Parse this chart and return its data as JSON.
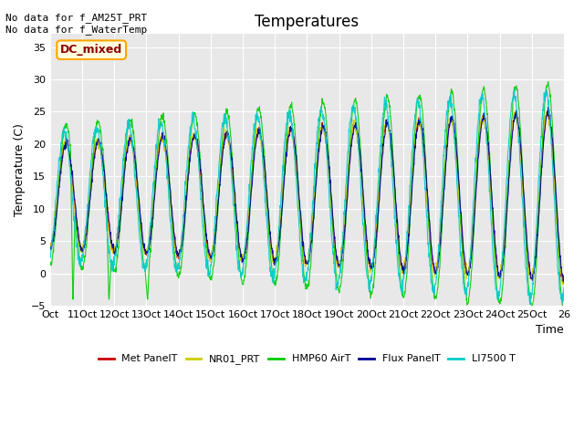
{
  "title": "Temperatures",
  "ylabel": "Temperature (C)",
  "xlabel": "Time",
  "ylim": [
    -5,
    37
  ],
  "yticks": [
    -5,
    0,
    5,
    10,
    15,
    20,
    25,
    30,
    35
  ],
  "annotation_text": "No data for f_AM25T_PRT\nNo data for f_WaterTemp",
  "dc_mixed_label": "DC_mixed",
  "legend_entries": [
    {
      "label": "Met PanelT",
      "color": "#cc0000"
    },
    {
      "label": "NR01_PRT",
      "color": "#cccc00"
    },
    {
      "label": "HMP60 AirT",
      "color": "#00cc00"
    },
    {
      "label": "Flux PanelT",
      "color": "#000099"
    },
    {
      "label": "LI7500 T",
      "color": "#00cccc"
    }
  ],
  "x_start": 0,
  "x_end": 16,
  "xtick_positions": [
    0,
    1,
    2,
    3,
    4,
    5,
    6,
    7,
    8,
    9,
    10,
    11,
    12,
    13,
    14,
    15,
    16
  ],
  "xtick_labels": [
    "Oct",
    "11Oct",
    "12Oct",
    "13Oct",
    "14Oct",
    "15Oct",
    "16Oct",
    "17Oct",
    "18Oct",
    "19Oct",
    "20Oct",
    "21Oct",
    "22Oct",
    "23Oct",
    "24Oct",
    "25Oct",
    "26"
  ],
  "background_color": "#e8e8e8"
}
